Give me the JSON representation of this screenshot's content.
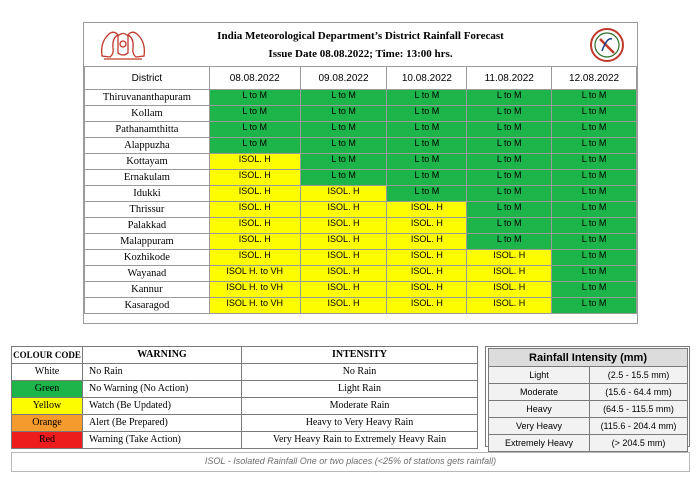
{
  "header": {
    "title": "India Meteorological Department’s District Rainfall Forecast",
    "issue": "Issue Date 08.08.2022; Time: 13:00 hrs."
  },
  "forecast": {
    "district_header": "District",
    "dates": [
      "08.08.2022",
      "09.08.2022",
      "10.08.2022",
      "11.08.2022",
      "12.08.2022"
    ],
    "rows": [
      {
        "district": "Thiruvananthapuram",
        "cells": [
          {
            "text": "L to M",
            "color": "#1db44a"
          },
          {
            "text": "L to M",
            "color": "#1db44a"
          },
          {
            "text": "L to M",
            "color": "#1db44a"
          },
          {
            "text": "L to M",
            "color": "#1db44a"
          },
          {
            "text": "L to M",
            "color": "#1db44a"
          }
        ]
      },
      {
        "district": "Kollam",
        "cells": [
          {
            "text": "L to M",
            "color": "#1db44a"
          },
          {
            "text": "L to M",
            "color": "#1db44a"
          },
          {
            "text": "L to M",
            "color": "#1db44a"
          },
          {
            "text": "L to M",
            "color": "#1db44a"
          },
          {
            "text": "L to M",
            "color": "#1db44a"
          }
        ]
      },
      {
        "district": "Pathanamthitta",
        "cells": [
          {
            "text": "L to M",
            "color": "#1db44a"
          },
          {
            "text": "L to M",
            "color": "#1db44a"
          },
          {
            "text": "L to M",
            "color": "#1db44a"
          },
          {
            "text": "L to M",
            "color": "#1db44a"
          },
          {
            "text": "L to M",
            "color": "#1db44a"
          }
        ]
      },
      {
        "district": "Alappuzha",
        "cells": [
          {
            "text": "L to M",
            "color": "#1db44a"
          },
          {
            "text": "L to M",
            "color": "#1db44a"
          },
          {
            "text": "L to M",
            "color": "#1db44a"
          },
          {
            "text": "L to M",
            "color": "#1db44a"
          },
          {
            "text": "L to M",
            "color": "#1db44a"
          }
        ]
      },
      {
        "district": "Kottayam",
        "cells": [
          {
            "text": "ISOL. H",
            "color": "#fdfd00"
          },
          {
            "text": "L to M",
            "color": "#1db44a"
          },
          {
            "text": "L to M",
            "color": "#1db44a"
          },
          {
            "text": "L to M",
            "color": "#1db44a"
          },
          {
            "text": "L to M",
            "color": "#1db44a"
          }
        ]
      },
      {
        "district": "Ernakulam",
        "cells": [
          {
            "text": "ISOL. H",
            "color": "#fdfd00"
          },
          {
            "text": "L to M",
            "color": "#1db44a"
          },
          {
            "text": "L to M",
            "color": "#1db44a"
          },
          {
            "text": "L to M",
            "color": "#1db44a"
          },
          {
            "text": "L to M",
            "color": "#1db44a"
          }
        ]
      },
      {
        "district": "Idukki",
        "cells": [
          {
            "text": "ISOL. H",
            "color": "#fdfd00"
          },
          {
            "text": "ISOL. H",
            "color": "#fdfd00"
          },
          {
            "text": "L to M",
            "color": "#1db44a"
          },
          {
            "text": "L to M",
            "color": "#1db44a"
          },
          {
            "text": "L to M",
            "color": "#1db44a"
          }
        ]
      },
      {
        "district": "Thrissur",
        "cells": [
          {
            "text": "ISOL. H",
            "color": "#fdfd00"
          },
          {
            "text": "ISOL. H",
            "color": "#fdfd00"
          },
          {
            "text": "ISOL. H",
            "color": "#fdfd00"
          },
          {
            "text": "L to M",
            "color": "#1db44a"
          },
          {
            "text": "L to M",
            "color": "#1db44a"
          }
        ]
      },
      {
        "district": "Palakkad",
        "cells": [
          {
            "text": "ISOL. H",
            "color": "#fdfd00"
          },
          {
            "text": "ISOL. H",
            "color": "#fdfd00"
          },
          {
            "text": "ISOL. H",
            "color": "#fdfd00"
          },
          {
            "text": "L to M",
            "color": "#1db44a"
          },
          {
            "text": "L to M",
            "color": "#1db44a"
          }
        ]
      },
      {
        "district": "Malappuram",
        "cells": [
          {
            "text": "ISOL. H",
            "color": "#fdfd00"
          },
          {
            "text": "ISOL. H",
            "color": "#fdfd00"
          },
          {
            "text": "ISOL. H",
            "color": "#fdfd00"
          },
          {
            "text": "L to M",
            "color": "#1db44a"
          },
          {
            "text": "L to M",
            "color": "#1db44a"
          }
        ]
      },
      {
        "district": "Kozhikode",
        "cells": [
          {
            "text": "ISOL. H",
            "color": "#fdfd00"
          },
          {
            "text": "ISOL. H",
            "color": "#fdfd00"
          },
          {
            "text": "ISOL. H",
            "color": "#fdfd00"
          },
          {
            "text": "ISOL. H",
            "color": "#fdfd00"
          },
          {
            "text": "L to M",
            "color": "#1db44a"
          }
        ]
      },
      {
        "district": "Wayanad",
        "cells": [
          {
            "text": "ISOL H. to VH",
            "color": "#fdfd00"
          },
          {
            "text": "ISOL. H",
            "color": "#fdfd00"
          },
          {
            "text": "ISOL. H",
            "color": "#fdfd00"
          },
          {
            "text": "ISOL. H",
            "color": "#fdfd00"
          },
          {
            "text": "L to M",
            "color": "#1db44a"
          }
        ]
      },
      {
        "district": "Kannur",
        "cells": [
          {
            "text": "ISOL H. to VH",
            "color": "#fdfd00"
          },
          {
            "text": "ISOL. H",
            "color": "#fdfd00"
          },
          {
            "text": "ISOL. H",
            "color": "#fdfd00"
          },
          {
            "text": "ISOL. H",
            "color": "#fdfd00"
          },
          {
            "text": "L to M",
            "color": "#1db44a"
          }
        ]
      },
      {
        "district": "Kasaragod",
        "cells": [
          {
            "text": "ISOL H. to VH",
            "color": "#fdfd00"
          },
          {
            "text": "ISOL. H",
            "color": "#fdfd00"
          },
          {
            "text": "ISOL. H",
            "color": "#fdfd00"
          },
          {
            "text": "ISOL. H",
            "color": "#fdfd00"
          },
          {
            "text": "L to M",
            "color": "#1db44a"
          }
        ]
      }
    ]
  },
  "legend": {
    "headers": {
      "colour_code": "COLOUR CODE",
      "warning": "WARNING",
      "intensity": "INTENSITY"
    },
    "rows": [
      {
        "colour": "White",
        "bg": "#ffffff",
        "warning": "No Rain",
        "intensity": "No Rain"
      },
      {
        "colour": "Green",
        "bg": "#1db44a",
        "warning": "No Warning (No Action)",
        "intensity": "Light Rain"
      },
      {
        "colour": "Yellow",
        "bg": "#fdfd00",
        "warning": "Watch (Be Updated)",
        "intensity": "Moderate Rain"
      },
      {
        "colour": "Orange",
        "bg": "#f59a2c",
        "warning": "Alert (Be Prepared)",
        "intensity": "Heavy to Very Heavy Rain"
      },
      {
        "colour": "Red",
        "bg": "#ee1d1d",
        "warning": "Warning (Take Action)",
        "intensity": "Very Heavy Rain to Extremely Heavy Rain"
      }
    ]
  },
  "rainfall_intensity": {
    "title": "Rainfall Intensity (mm)",
    "rows": [
      {
        "label": "Light",
        "range": "(2.5 - 15.5 mm)"
      },
      {
        "label": "Moderate",
        "range": "(15.6 - 64.4 mm)"
      },
      {
        "label": "Heavy",
        "range": "(64.5 - 115.5 mm)"
      },
      {
        "label": "Very Heavy",
        "range": "(115.6 - 204.4 mm)"
      },
      {
        "label": "Extremely Heavy",
        "range": "(> 204.5 mm)"
      }
    ]
  },
  "note": "ISOL - Isolated Rainfall One or two places (<25% of stations gets rainfall)",
  "icons": {
    "left_logo": "kerala-emblem-icon",
    "right_logo": "imd-logo-icon"
  }
}
